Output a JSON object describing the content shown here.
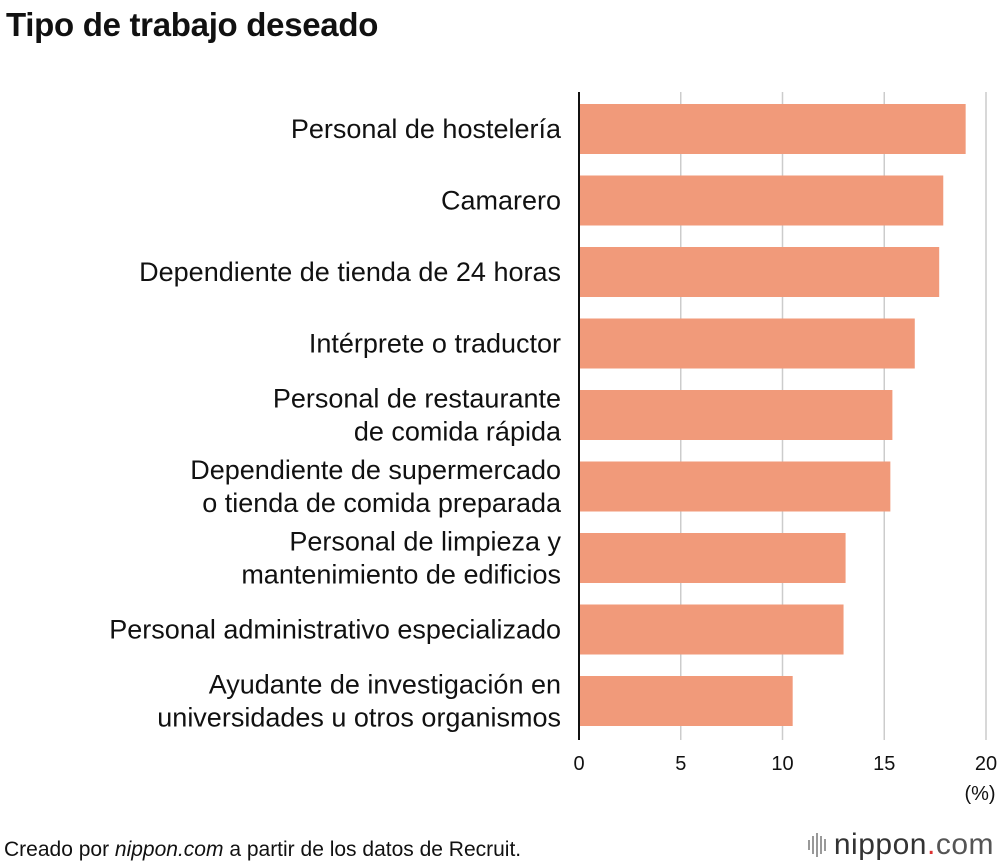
{
  "chart_data": {
    "type": "bar",
    "orientation": "horizontal",
    "title": "Tipo de trabajo deseado",
    "categories": [
      [
        "Personal de hostelería"
      ],
      [
        "Camarero"
      ],
      [
        "Dependiente de tienda de 24 horas"
      ],
      [
        "Intérprete o traductor"
      ],
      [
        "Personal de restaurante",
        "de comida rápida"
      ],
      [
        "Dependiente de supermercado",
        "o tienda de comida preparada"
      ],
      [
        "Personal de limpieza y",
        "mantenimiento de edificios"
      ],
      [
        "Personal administrativo especializado"
      ],
      [
        "Ayudante de investigación en",
        "universidades u otros organismos"
      ]
    ],
    "values": [
      19.0,
      17.9,
      17.7,
      16.5,
      15.4,
      15.3,
      13.1,
      13.0,
      10.5
    ],
    "xlim": [
      0,
      20
    ],
    "xticks": [
      "0",
      "5",
      "10",
      "15",
      "20"
    ],
    "xlabel": "(%)",
    "grid": true,
    "bar_color": "#f19a7a",
    "grid_color": "#cccccc"
  },
  "footer": {
    "prefix": "Creado por ",
    "source": "nippon.com",
    "suffix": " a partir de los datos de Recruit."
  },
  "logo": {
    "name": "nippon",
    "dot": ".",
    "tld": "com"
  }
}
